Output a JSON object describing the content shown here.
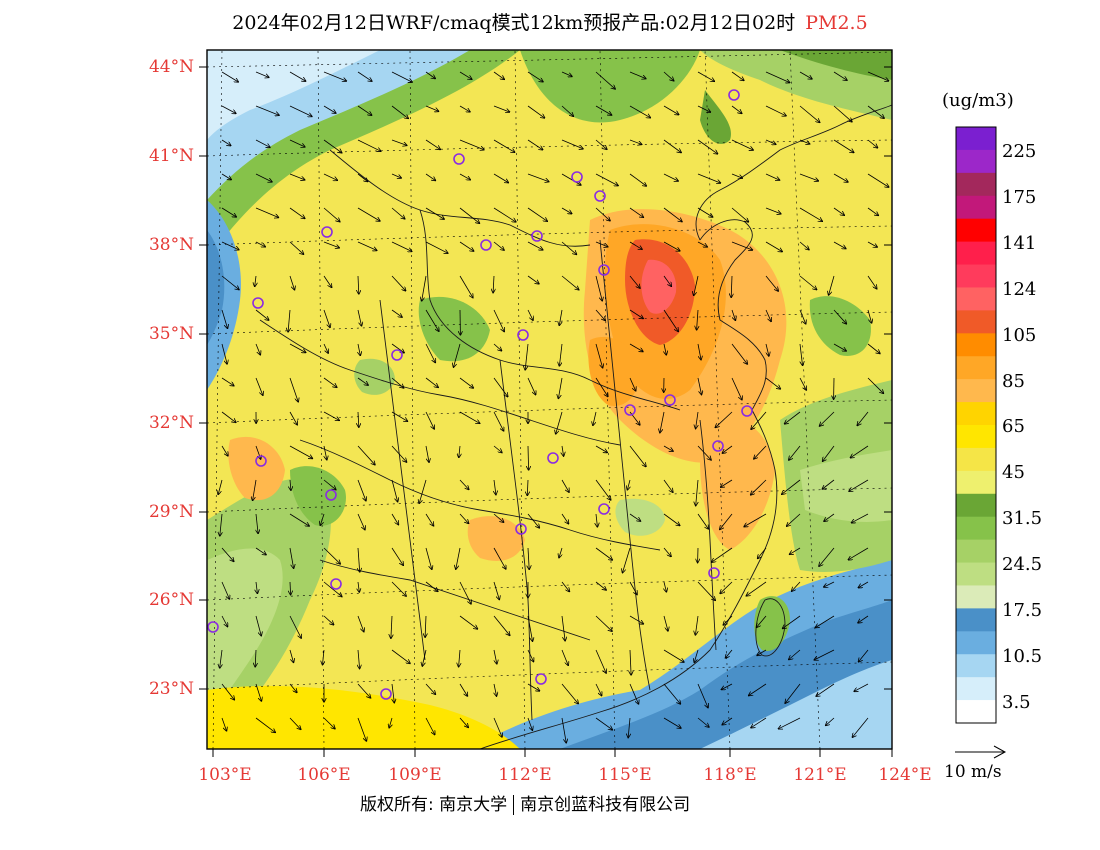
{
  "title": {
    "main": "2024年02月12日WRF/cmaq模式12km预报产品:02月12日02时",
    "pollutant": "PM2.5"
  },
  "map": {
    "lat_labels": [
      "44°N",
      "41°N",
      "38°N",
      "35°N",
      "32°N",
      "29°N",
      "26°N",
      "23°N"
    ],
    "lon_labels": [
      "103°E",
      "106°E",
      "109°E",
      "112°E",
      "115°E",
      "118°E",
      "121°E",
      "124°E"
    ]
  },
  "legend": {
    "unit": "(ug/m3)",
    "labels": [
      "225",
      "175",
      "141",
      "124",
      "105",
      "85",
      "65",
      "45",
      "31.5",
      "24.5",
      "17.5",
      "10.5",
      "3.5"
    ],
    "colors": [
      "#7b1fd0",
      "#9c27c9",
      "#a3285c",
      "#c2187a",
      "#ff0000",
      "#ff1f4b",
      "#ff3b5c",
      "#ff6262",
      "#f05a28",
      "#ff8c00",
      "#ffa726",
      "#ffb84d",
      "#ffd400",
      "#ffe600",
      "#f5e547",
      "#eef06e",
      "#6aa635",
      "#86c24a",
      "#a6d166",
      "#bede82",
      "#dbebb8",
      "#4a90c8",
      "#6aaee0",
      "#a6d6f2",
      "#d6eefa",
      "#ffffff"
    ]
  },
  "wind": {
    "scale_label": "10 m/s"
  },
  "footer": {
    "copyright": "版权所有: 南京大学",
    "company": "南京创蓝科技有限公司"
  }
}
